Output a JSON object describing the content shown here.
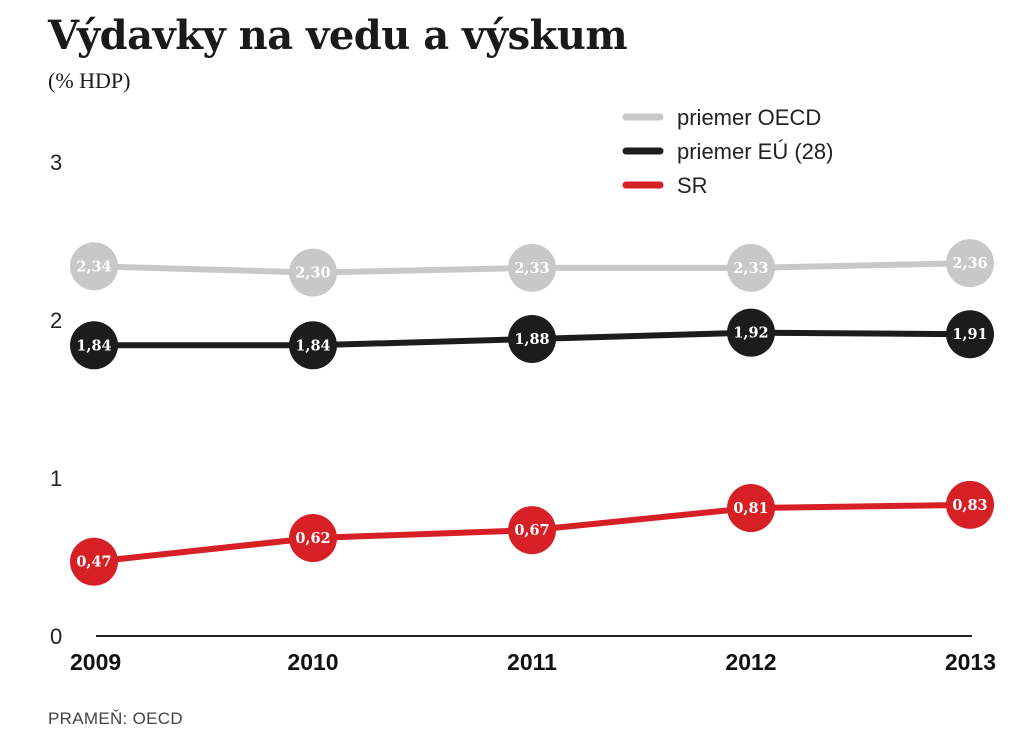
{
  "title": "Výdavky na vedu a výskum",
  "subtitle": "(% HDP)",
  "source": "PRAMEŇ: OECD",
  "chart_data": {
    "type": "line",
    "title": "Výdavky na vedu a výskum",
    "subtitle": "(% HDP)",
    "categories": [
      "2009",
      "2010",
      "2011",
      "2012",
      "2013"
    ],
    "yticks": [
      "0",
      "1",
      "2",
      "3"
    ],
    "ylim": [
      0,
      3
    ],
    "grid": false,
    "legend_position": "top-right",
    "series": [
      {
        "name": "priemer OECD",
        "color": "#c8c8c8",
        "values": [
          2.34,
          2.3,
          2.33,
          2.33,
          2.36
        ],
        "labels": [
          "2,34",
          "2,30",
          "2,33",
          "2,33",
          "2,36"
        ]
      },
      {
        "name": "priemer EÚ (28)",
        "color": "#1c1c1c",
        "values": [
          1.84,
          1.84,
          1.88,
          1.92,
          1.91
        ],
        "labels": [
          "1,84",
          "1,84",
          "1,88",
          "1,92",
          "1,91"
        ]
      },
      {
        "name": "SR",
        "color": "#d71f26",
        "values": [
          0.47,
          0.62,
          0.67,
          0.81,
          0.83
        ],
        "labels": [
          "0,47",
          "0,62",
          "0,67",
          "0,81",
          "0,83"
        ]
      }
    ]
  }
}
